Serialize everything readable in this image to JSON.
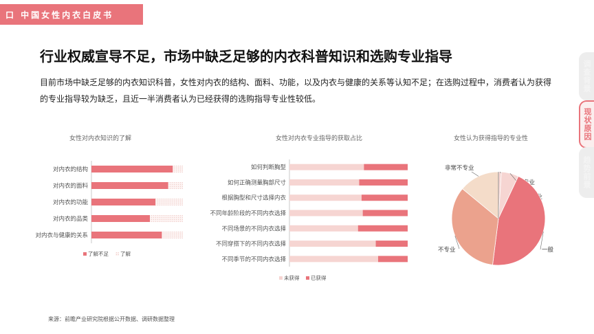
{
  "banner": {
    "label": "口 中国女性内衣白皮书"
  },
  "headline": "行业权威宣导不足，市场中缺乏足够的内衣科普知识和选购专业指导",
  "body": "目前市场中缺乏足够的内衣知识科普，女性对内衣的结构、面料、功能，以及内衣与健康的关系等认知不足；在选购过程中，消费者认为获得的专业指导较为缺乏，且近一半消费者认为已经获得的选购指导专业性较低。",
  "side_tabs": [
    "调查背景",
    "现状原因",
    "趋势前景"
  ],
  "colors": {
    "accent": "#e9747b",
    "light": "#f6d5d2",
    "mid": "#eba28d",
    "pale": "#f4dcc9"
  },
  "chart_data": [
    {
      "type": "bar",
      "orientation": "horizontal",
      "stacked": true,
      "title": "女性对内衣知识的了解",
      "categories": [
        "对内衣的结构",
        "对内衣的面料",
        "对内衣的功能",
        "对内衣的品类",
        "对内衣与健康的关系"
      ],
      "series": [
        {
          "name": "了解不足",
          "values": [
            89,
            84,
            70,
            64,
            77
          ]
        },
        {
          "name": "了解",
          "values": [
            11,
            16,
            30,
            36,
            23
          ]
        }
      ],
      "xlim": [
        0,
        100
      ],
      "legend": "bottom"
    },
    {
      "type": "bar",
      "orientation": "horizontal",
      "stacked": true,
      "title": "女性对内衣专业指导的获取占比",
      "categories": [
        "如何判断胸型",
        "如何正确测量胸部尺寸",
        "根据胸型和尺寸选择内衣",
        "不同年龄阶段的不同内衣选择",
        "不同场景的不同内衣选择",
        "不同穿搭下的不同内衣选择",
        "不同季节的不同内衣选择"
      ],
      "series": [
        {
          "name": "未获得",
          "values": [
            63,
            59,
            61,
            62,
            58,
            73,
            75
          ]
        },
        {
          "name": "已获得",
          "values": [
            37,
            41,
            39,
            38,
            42,
            27,
            25
          ]
        }
      ],
      "xlim": [
        0,
        100
      ],
      "legend": "bottom"
    },
    {
      "type": "pie",
      "title": "女性认为获得指导的专业性",
      "labels": [
        "非常专业",
        "专业",
        "一般",
        "不专业",
        "非常不专业"
      ],
      "values": [
        1,
        6,
        45,
        34,
        14
      ],
      "colors": [
        "#f6d5d2",
        "#f6d5d2",
        "#e9747b",
        "#eba28d",
        "#f4dcc9"
      ]
    }
  ],
  "source": "来源：前瞻产业研究院根据公开数据、调研数据整理"
}
